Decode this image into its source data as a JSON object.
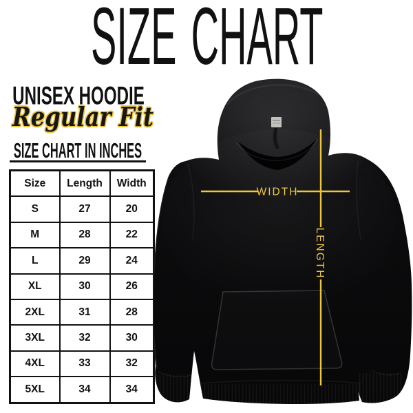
{
  "title": "SIZE CHART",
  "product": {
    "name": "UNISEX HOODIE",
    "fit": "Regular Fit"
  },
  "table": {
    "caption": "SIZE CHART IN INCHES",
    "headers": [
      "Size",
      "Length",
      "Width"
    ],
    "rows": [
      [
        "S",
        "27",
        "20"
      ],
      [
        "M",
        "28",
        "22"
      ],
      [
        "L",
        "29",
        "24"
      ],
      [
        "XL",
        "30",
        "26"
      ],
      [
        "2XL",
        "31",
        "28"
      ],
      [
        "3XL",
        "32",
        "30"
      ],
      [
        "4XL",
        "33",
        "32"
      ],
      [
        "5XL",
        "34",
        "34"
      ]
    ]
  },
  "diagram": {
    "width_label": "WIDTH",
    "length_label": "LENGTH"
  },
  "colors": {
    "accent_gold": "#EDC63E",
    "garment_black": "#0b0b0d"
  },
  "chart_data": {
    "type": "table",
    "title": "SIZE CHART IN INCHES",
    "subtitle": "Unisex Hoodie - Regular Fit",
    "columns": [
      "Size",
      "Length",
      "Width"
    ],
    "units": "inches",
    "rows": [
      [
        "S",
        27,
        20
      ],
      [
        "M",
        28,
        22
      ],
      [
        "L",
        29,
        24
      ],
      [
        "XL",
        30,
        26
      ],
      [
        "2XL",
        31,
        28
      ],
      [
        "3XL",
        32,
        30
      ],
      [
        "4XL",
        33,
        32
      ],
      [
        "5XL",
        34,
        34
      ]
    ]
  }
}
